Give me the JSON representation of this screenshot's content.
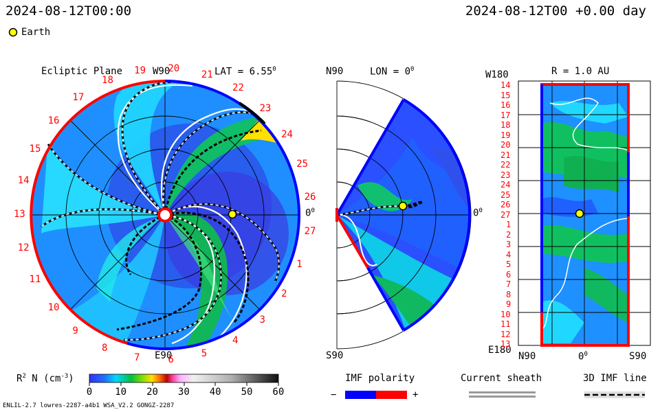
{
  "header": {
    "time_left": "2024-08-12T00:00",
    "time_right": "2024-08-12T00 +0.00 day",
    "earth_legend": "Earth"
  },
  "panel_ecliptic": {
    "title": "Ecliptic Plane",
    "top_label": "W90",
    "bottom_label": "E90",
    "right_label": "0",
    "right_label_sup": "0",
    "lat_label": "LAT = 6.55",
    "lat_sup": "0",
    "rotation_numbers": [
      "19",
      "20",
      "21",
      "22",
      "23",
      "24",
      "25",
      "26",
      "27",
      "1",
      "2",
      "3",
      "4",
      "5",
      "6",
      "7",
      "8",
      "9",
      "10",
      "11",
      "12",
      "13",
      "14",
      "15",
      "16",
      "17",
      "18"
    ]
  },
  "panel_meridional": {
    "top_label": "N90",
    "bottom_label": "S90",
    "lon_label": "LON = 0",
    "lon_sup": "0",
    "right_label": "0",
    "right_sup": "0"
  },
  "panel_r": {
    "title": "R = 1.0 AU",
    "top_left": "W180",
    "bottom_left": "E180",
    "x_labels": [
      "N90",
      "0",
      "S90"
    ],
    "x_sup": "0",
    "y_labels": [
      "14",
      "15",
      "16",
      "17",
      "18",
      "19",
      "20",
      "21",
      "22",
      "23",
      "24",
      "25",
      "26",
      "27",
      "1",
      "2",
      "3",
      "4",
      "5",
      "6",
      "7",
      "8",
      "9",
      "10",
      "11",
      "12",
      "13"
    ]
  },
  "colorbar": {
    "label": "R",
    "label_sup": "2",
    "label_rest": " N (cm",
    "label_exp": "-3",
    "label_end": ")",
    "ticks": [
      "0",
      "10",
      "20",
      "30",
      "40",
      "50",
      "60"
    ],
    "min": 0,
    "max": 60
  },
  "legend": {
    "imf_title": "IMF polarity",
    "imf_minus": "−",
    "imf_plus": "+",
    "sheath_title": "Current sheath",
    "imf3d_title": "3D IMF line"
  },
  "footer": {
    "left": "ENLIL-2.7 lowres-2287-a4b1 WSA_V2.2 GONGZ-2287"
  },
  "colors": {
    "positive": "#ff0000",
    "negative": "#0000ff",
    "earth": "#ffff00"
  }
}
